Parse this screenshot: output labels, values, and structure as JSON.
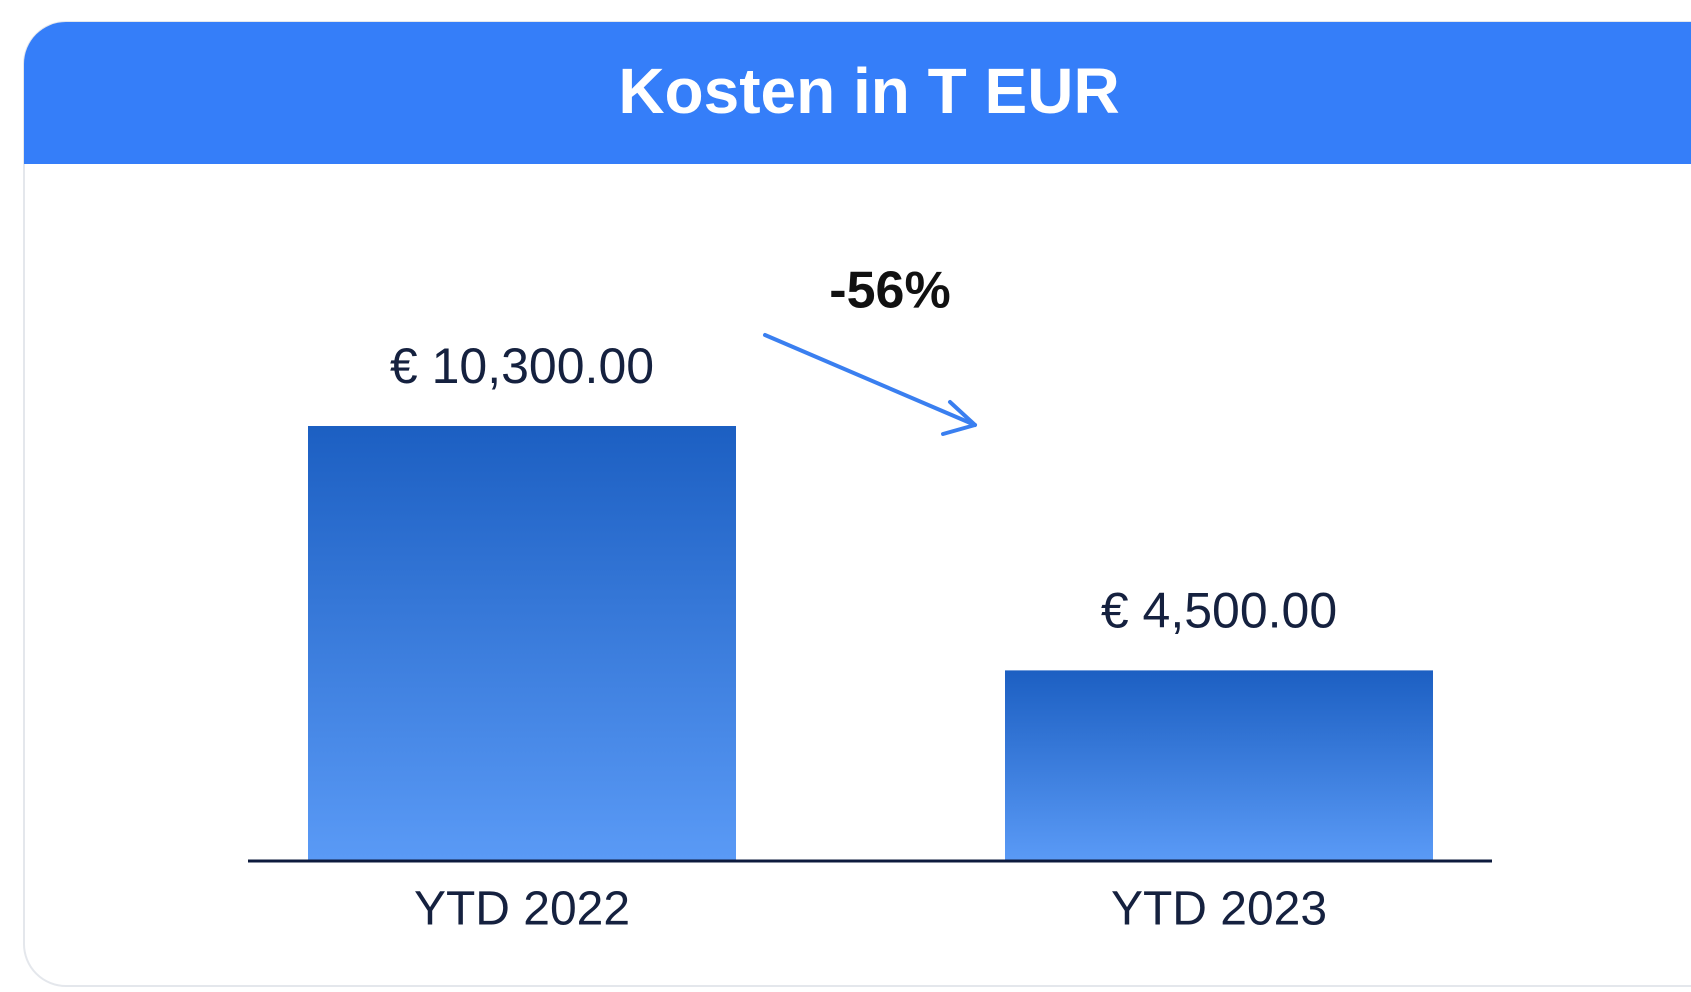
{
  "chart_data": {
    "type": "bar",
    "title": "Kosten in T EUR",
    "categories": [
      "YTD 2022",
      "YTD 2023"
    ],
    "values": [
      10300,
      4500
    ],
    "value_labels": [
      "€  10,300.00",
      "€  4,500.00"
    ],
    "annotation": "-56%",
    "color": "#3a7fe0"
  }
}
